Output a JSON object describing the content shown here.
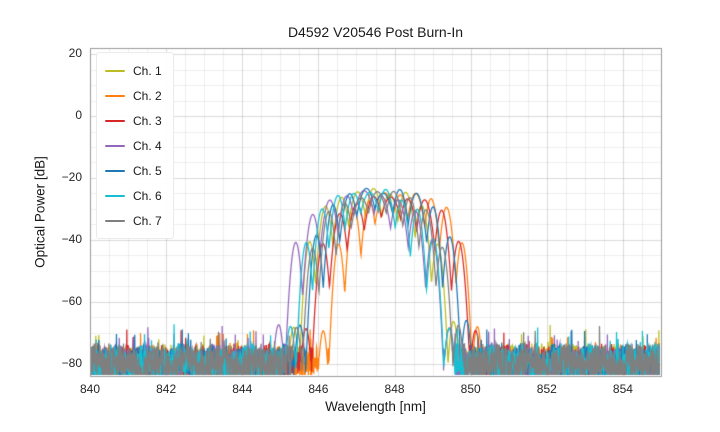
{
  "chart_data": {
    "type": "line",
    "title": "D4592 V20546 Post Burn-In",
    "xlabel": "Wavelength [nm]",
    "ylabel": "Optical Power [dB]",
    "xlim": [
      840,
      855
    ],
    "ylim": [
      -84,
      22
    ],
    "xticks": [
      840,
      842,
      844,
      846,
      848,
      850,
      852,
      854
    ],
    "yticks": [
      20,
      0,
      -20,
      -40,
      -60,
      -80
    ],
    "grid": true,
    "minor_grid": true,
    "legend_position": "upper left",
    "noise_floor_db": -80,
    "passband": {
      "approx_span_nm": [
        845.7,
        849.5
      ],
      "peak_level_db": -24,
      "lobe_spacing_nm": 0.42,
      "ripple_depth_db": [
        4,
        25
      ],
      "shape": "rippled flat-top optical spectrum with steep skirts over a -80 dB noise floor"
    },
    "series": [
      {
        "name": "Ch. 1",
        "color": "#bcbd22",
        "center_nm": 847.45,
        "peak_db": -24.5
      },
      {
        "name": "Ch. 2",
        "color": "#ff7f0e",
        "center_nm": 848.15,
        "peak_db": -24.0
      },
      {
        "name": "Ch. 3",
        "color": "#d62728",
        "center_nm": 847.9,
        "peak_db": -24.5
      },
      {
        "name": "Ch. 4",
        "color": "#9467bd",
        "center_nm": 847.2,
        "peak_db": -25.0
      },
      {
        "name": "Ch. 5",
        "color": "#1f77b4",
        "center_nm": 847.7,
        "peak_db": -23.5
      },
      {
        "name": "Ch. 6",
        "color": "#17becf",
        "center_nm": 847.35,
        "peak_db": -24.5
      },
      {
        "name": "Ch. 7",
        "color": "#7f7f7f",
        "center_nm": 847.55,
        "peak_db": -24.5
      }
    ]
  }
}
